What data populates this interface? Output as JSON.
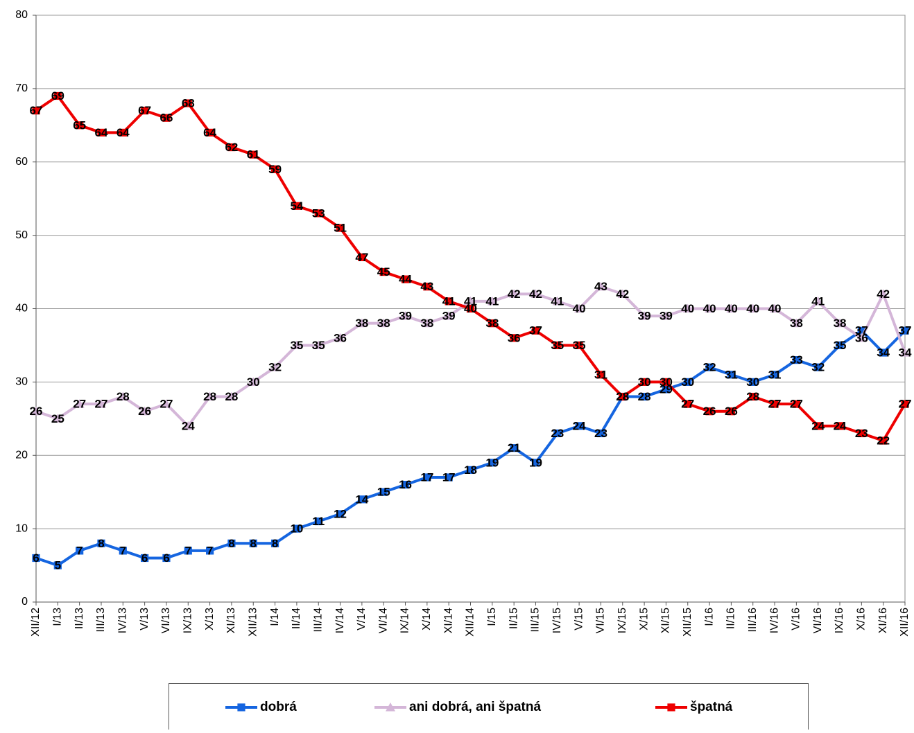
{
  "chart_data": {
    "type": "line",
    "categories": [
      "XII/12",
      "I/13",
      "II/13",
      "III/13",
      "IV/13",
      "V/13",
      "VI/13",
      "IX/13",
      "X/13",
      "XI/13",
      "XII/13",
      "I/14",
      "II/14",
      "III/14",
      "IV/14",
      "V/14",
      "VI/14",
      "IX/14",
      "X/14",
      "XI/14",
      "XII/14",
      "I/15",
      "II/15",
      "III/15",
      "IV/15",
      "V/15",
      "VI/15",
      "IX/15",
      "X/15",
      "XI/15",
      "XII/15",
      "I/16",
      "II/16",
      "III/16",
      "IV/16",
      "V/16",
      "VI/16",
      "IX/16",
      "X/16",
      "XI/16",
      "XII/16"
    ],
    "series": [
      {
        "name": "dobrá",
        "color": "#1565e0",
        "marker": "square",
        "values": [
          6,
          5,
          7,
          8,
          7,
          6,
          6,
          7,
          7,
          8,
          8,
          8,
          10,
          11,
          12,
          14,
          15,
          16,
          17,
          17,
          18,
          19,
          21,
          19,
          23,
          24,
          23,
          28,
          28,
          29,
          30,
          32,
          31,
          30,
          31,
          33,
          32,
          35,
          37,
          34,
          37
        ]
      },
      {
        "name": "ani dobrá, ani špatná",
        "color": "#d4b6d8",
        "marker": "triangle",
        "values": [
          26,
          25,
          27,
          27,
          28,
          26,
          27,
          24,
          28,
          28,
          30,
          32,
          35,
          35,
          36,
          38,
          38,
          39,
          38,
          39,
          41,
          41,
          42,
          42,
          41,
          40,
          43,
          42,
          39,
          39,
          40,
          40,
          40,
          40,
          40,
          38,
          41,
          38,
          36,
          42,
          34
        ]
      },
      {
        "name": "špatná",
        "color": "#ee0000",
        "marker": "square",
        "values": [
          67,
          69,
          65,
          64,
          64,
          67,
          66,
          68,
          64,
          62,
          61,
          59,
          54,
          53,
          51,
          47,
          45,
          44,
          43,
          41,
          40,
          38,
          36,
          37,
          35,
          35,
          31,
          28,
          30,
          30,
          27,
          26,
          26,
          28,
          27,
          27,
          24,
          24,
          23,
          22,
          27
        ]
      }
    ],
    "ylim": [
      0,
      80
    ],
    "yticks": [
      0,
      10,
      20,
      30,
      40,
      50,
      60,
      70,
      80
    ],
    "grid": true,
    "legend": "bottom"
  }
}
